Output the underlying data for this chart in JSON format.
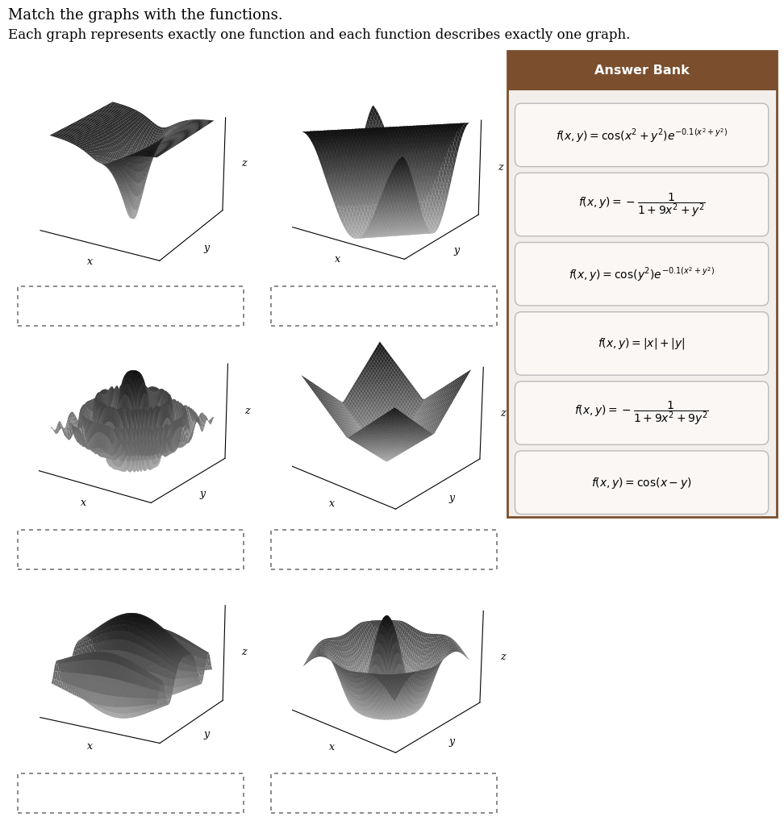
{
  "title1": "Match the graphs with the functions.",
  "title2": "Each graph represents exactly one function and each function describes exactly one graph.",
  "answer_bank_title": "Answer Bank",
  "answer_bank_header_color": "#7B4F2E",
  "answer_bank_bg": "#F2EEEC",
  "answer_bank_border": "#7B4F2E",
  "formulas_latex": [
    "$f(x, y) = \\cos(x^2 + y^2)e^{-0.1(x^2+y^2)}$",
    "$f(x, y) = -\\dfrac{1}{1+9x^2+y^2}$",
    "$f(x, y) = \\cos(y^2)e^{-0.1(x^2+y^2)}$",
    "$f(x, y) = |x| + |y|$",
    "$f(x, y) = -\\dfrac{1}{1+9x^2+9y^2}$",
    "$f(x, y) = \\cos(x - y)$"
  ],
  "background_color": "#ffffff",
  "axis_label_fontsize": 8
}
